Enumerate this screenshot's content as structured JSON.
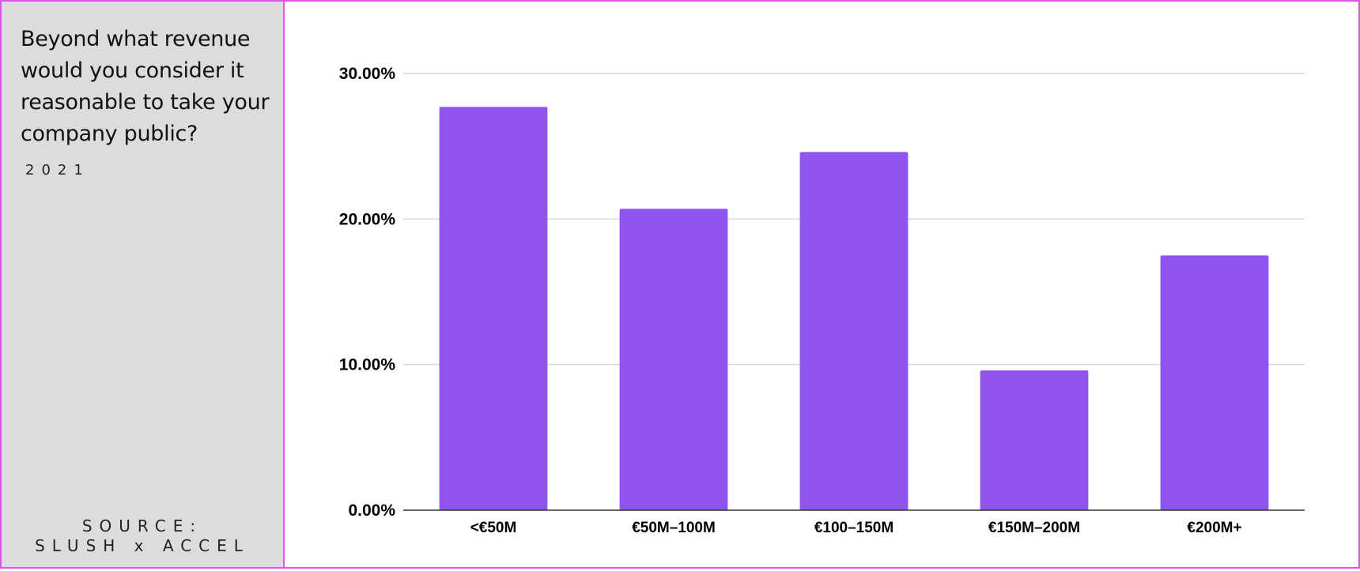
{
  "sidebar": {
    "question": "Beyond what revenue would you consider it reasonable to take your company public?",
    "year": "2021",
    "source_label": "SOURCE:",
    "source_name": "SLUSH x ACCEL"
  },
  "colors": {
    "bar": "#9155ef",
    "frame": "#d65ae0",
    "sidebar_bg": "#dcdcdc",
    "grid": "#d8d8d8",
    "axis": "#333333"
  },
  "chart_data": {
    "type": "bar",
    "title": "Beyond what revenue would you consider it reasonable to take your company public?",
    "subtitle": "2021",
    "xlabel": "",
    "ylabel": "",
    "categories": [
      "<€50M",
      "€50M–100M",
      "€100–150M",
      "€150M–200M",
      "€200M+"
    ],
    "values": [
      27.7,
      20.7,
      24.6,
      9.6,
      17.5
    ],
    "ylim": [
      0,
      30
    ],
    "yticks": [
      {
        "value": 0,
        "label": "0.00%"
      },
      {
        "value": 10,
        "label": "10.00%"
      },
      {
        "value": 20,
        "label": "20.00%"
      },
      {
        "value": 30,
        "label": "30.00%"
      }
    ],
    "grid": true,
    "legend": "none"
  }
}
